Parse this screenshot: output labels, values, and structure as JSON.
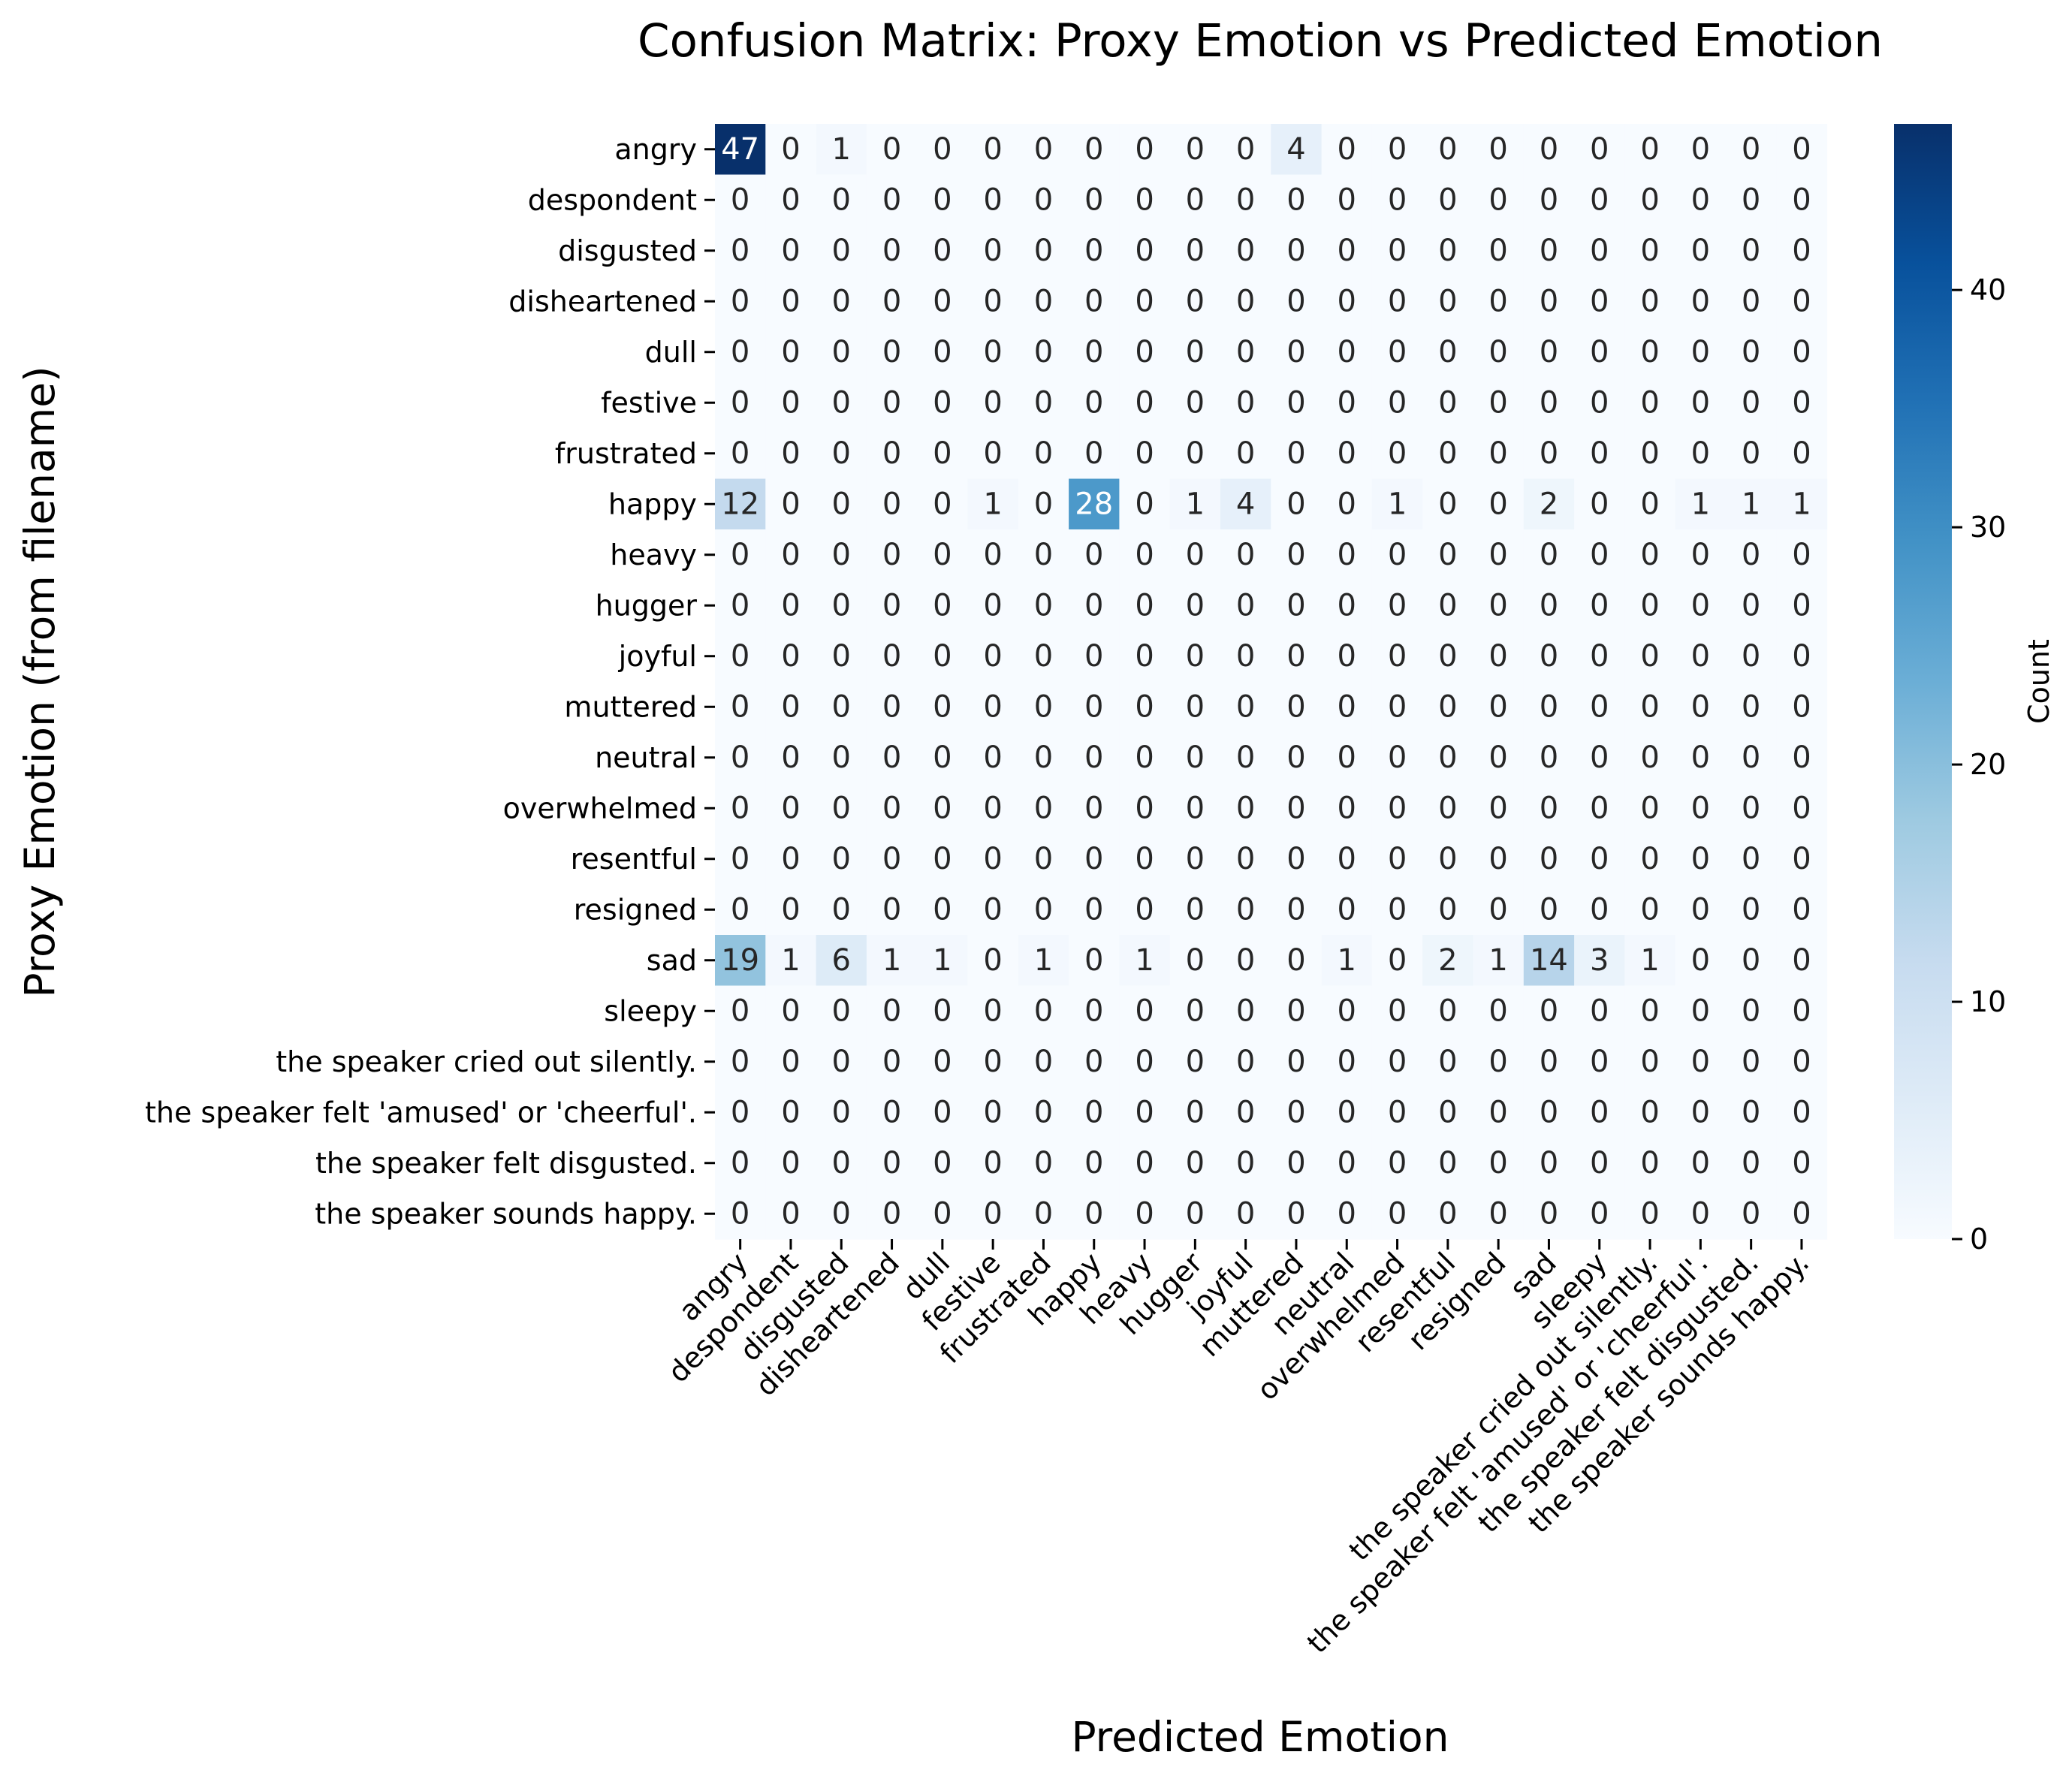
{
  "chart_data": {
    "type": "heatmap",
    "title": "Confusion Matrix: Proxy Emotion vs Predicted Emotion",
    "xlabel": "Predicted Emotion",
    "ylabel": "Proxy Emotion (from filename)",
    "colorbar": {
      "label": "Count",
      "colormap": "Blues",
      "min": 0,
      "max": 47,
      "ticks": [
        0,
        10,
        20,
        30,
        40
      ]
    },
    "x_categories": [
      "angry",
      "despondent",
      "disgusted",
      "disheartened",
      "dull",
      "festive",
      "frustrated",
      "happy",
      "heavy",
      "hugger",
      "joyful",
      "muttered",
      "neutral",
      "overwhelmed",
      "resentful",
      "resigned",
      "sad",
      "sleepy",
      "the speaker cried out silently.",
      "the speaker felt 'amused' or 'cheerful'.",
      "the speaker felt disgusted.",
      "the speaker sounds happy."
    ],
    "y_categories": [
      "angry",
      "despondent",
      "disgusted",
      "disheartened",
      "dull",
      "festive",
      "frustrated",
      "happy",
      "heavy",
      "hugger",
      "joyful",
      "muttered",
      "neutral",
      "overwhelmed",
      "resentful",
      "resigned",
      "sad",
      "sleepy",
      "the speaker cried out silently.",
      "the speaker felt 'amused' or 'cheerful'.",
      "the speaker felt disgusted.",
      "the speaker sounds happy."
    ],
    "values": [
      [
        47,
        0,
        1,
        0,
        0,
        0,
        0,
        0,
        0,
        0,
        0,
        4,
        0,
        0,
        0,
        0,
        0,
        0,
        0,
        0,
        0,
        0
      ],
      [
        0,
        0,
        0,
        0,
        0,
        0,
        0,
        0,
        0,
        0,
        0,
        0,
        0,
        0,
        0,
        0,
        0,
        0,
        0,
        0,
        0,
        0
      ],
      [
        0,
        0,
        0,
        0,
        0,
        0,
        0,
        0,
        0,
        0,
        0,
        0,
        0,
        0,
        0,
        0,
        0,
        0,
        0,
        0,
        0,
        0
      ],
      [
        0,
        0,
        0,
        0,
        0,
        0,
        0,
        0,
        0,
        0,
        0,
        0,
        0,
        0,
        0,
        0,
        0,
        0,
        0,
        0,
        0,
        0
      ],
      [
        0,
        0,
        0,
        0,
        0,
        0,
        0,
        0,
        0,
        0,
        0,
        0,
        0,
        0,
        0,
        0,
        0,
        0,
        0,
        0,
        0,
        0
      ],
      [
        0,
        0,
        0,
        0,
        0,
        0,
        0,
        0,
        0,
        0,
        0,
        0,
        0,
        0,
        0,
        0,
        0,
        0,
        0,
        0,
        0,
        0
      ],
      [
        0,
        0,
        0,
        0,
        0,
        0,
        0,
        0,
        0,
        0,
        0,
        0,
        0,
        0,
        0,
        0,
        0,
        0,
        0,
        0,
        0,
        0
      ],
      [
        12,
        0,
        0,
        0,
        0,
        1,
        0,
        28,
        0,
        1,
        4,
        0,
        0,
        1,
        0,
        0,
        2,
        0,
        0,
        1,
        1,
        1
      ],
      [
        0,
        0,
        0,
        0,
        0,
        0,
        0,
        0,
        0,
        0,
        0,
        0,
        0,
        0,
        0,
        0,
        0,
        0,
        0,
        0,
        0,
        0
      ],
      [
        0,
        0,
        0,
        0,
        0,
        0,
        0,
        0,
        0,
        0,
        0,
        0,
        0,
        0,
        0,
        0,
        0,
        0,
        0,
        0,
        0,
        0
      ],
      [
        0,
        0,
        0,
        0,
        0,
        0,
        0,
        0,
        0,
        0,
        0,
        0,
        0,
        0,
        0,
        0,
        0,
        0,
        0,
        0,
        0,
        0
      ],
      [
        0,
        0,
        0,
        0,
        0,
        0,
        0,
        0,
        0,
        0,
        0,
        0,
        0,
        0,
        0,
        0,
        0,
        0,
        0,
        0,
        0,
        0
      ],
      [
        0,
        0,
        0,
        0,
        0,
        0,
        0,
        0,
        0,
        0,
        0,
        0,
        0,
        0,
        0,
        0,
        0,
        0,
        0,
        0,
        0,
        0
      ],
      [
        0,
        0,
        0,
        0,
        0,
        0,
        0,
        0,
        0,
        0,
        0,
        0,
        0,
        0,
        0,
        0,
        0,
        0,
        0,
        0,
        0,
        0
      ],
      [
        0,
        0,
        0,
        0,
        0,
        0,
        0,
        0,
        0,
        0,
        0,
        0,
        0,
        0,
        0,
        0,
        0,
        0,
        0,
        0,
        0,
        0
      ],
      [
        0,
        0,
        0,
        0,
        0,
        0,
        0,
        0,
        0,
        0,
        0,
        0,
        0,
        0,
        0,
        0,
        0,
        0,
        0,
        0,
        0,
        0
      ],
      [
        19,
        1,
        6,
        1,
        1,
        0,
        1,
        0,
        1,
        0,
        0,
        0,
        1,
        0,
        2,
        1,
        14,
        3,
        1,
        0,
        0,
        0
      ],
      [
        0,
        0,
        0,
        0,
        0,
        0,
        0,
        0,
        0,
        0,
        0,
        0,
        0,
        0,
        0,
        0,
        0,
        0,
        0,
        0,
        0,
        0
      ],
      [
        0,
        0,
        0,
        0,
        0,
        0,
        0,
        0,
        0,
        0,
        0,
        0,
        0,
        0,
        0,
        0,
        0,
        0,
        0,
        0,
        0,
        0
      ],
      [
        0,
        0,
        0,
        0,
        0,
        0,
        0,
        0,
        0,
        0,
        0,
        0,
        0,
        0,
        0,
        0,
        0,
        0,
        0,
        0,
        0,
        0
      ],
      [
        0,
        0,
        0,
        0,
        0,
        0,
        0,
        0,
        0,
        0,
        0,
        0,
        0,
        0,
        0,
        0,
        0,
        0,
        0,
        0,
        0,
        0
      ],
      [
        0,
        0,
        0,
        0,
        0,
        0,
        0,
        0,
        0,
        0,
        0,
        0,
        0,
        0,
        0,
        0,
        0,
        0,
        0,
        0,
        0,
        0
      ]
    ]
  }
}
